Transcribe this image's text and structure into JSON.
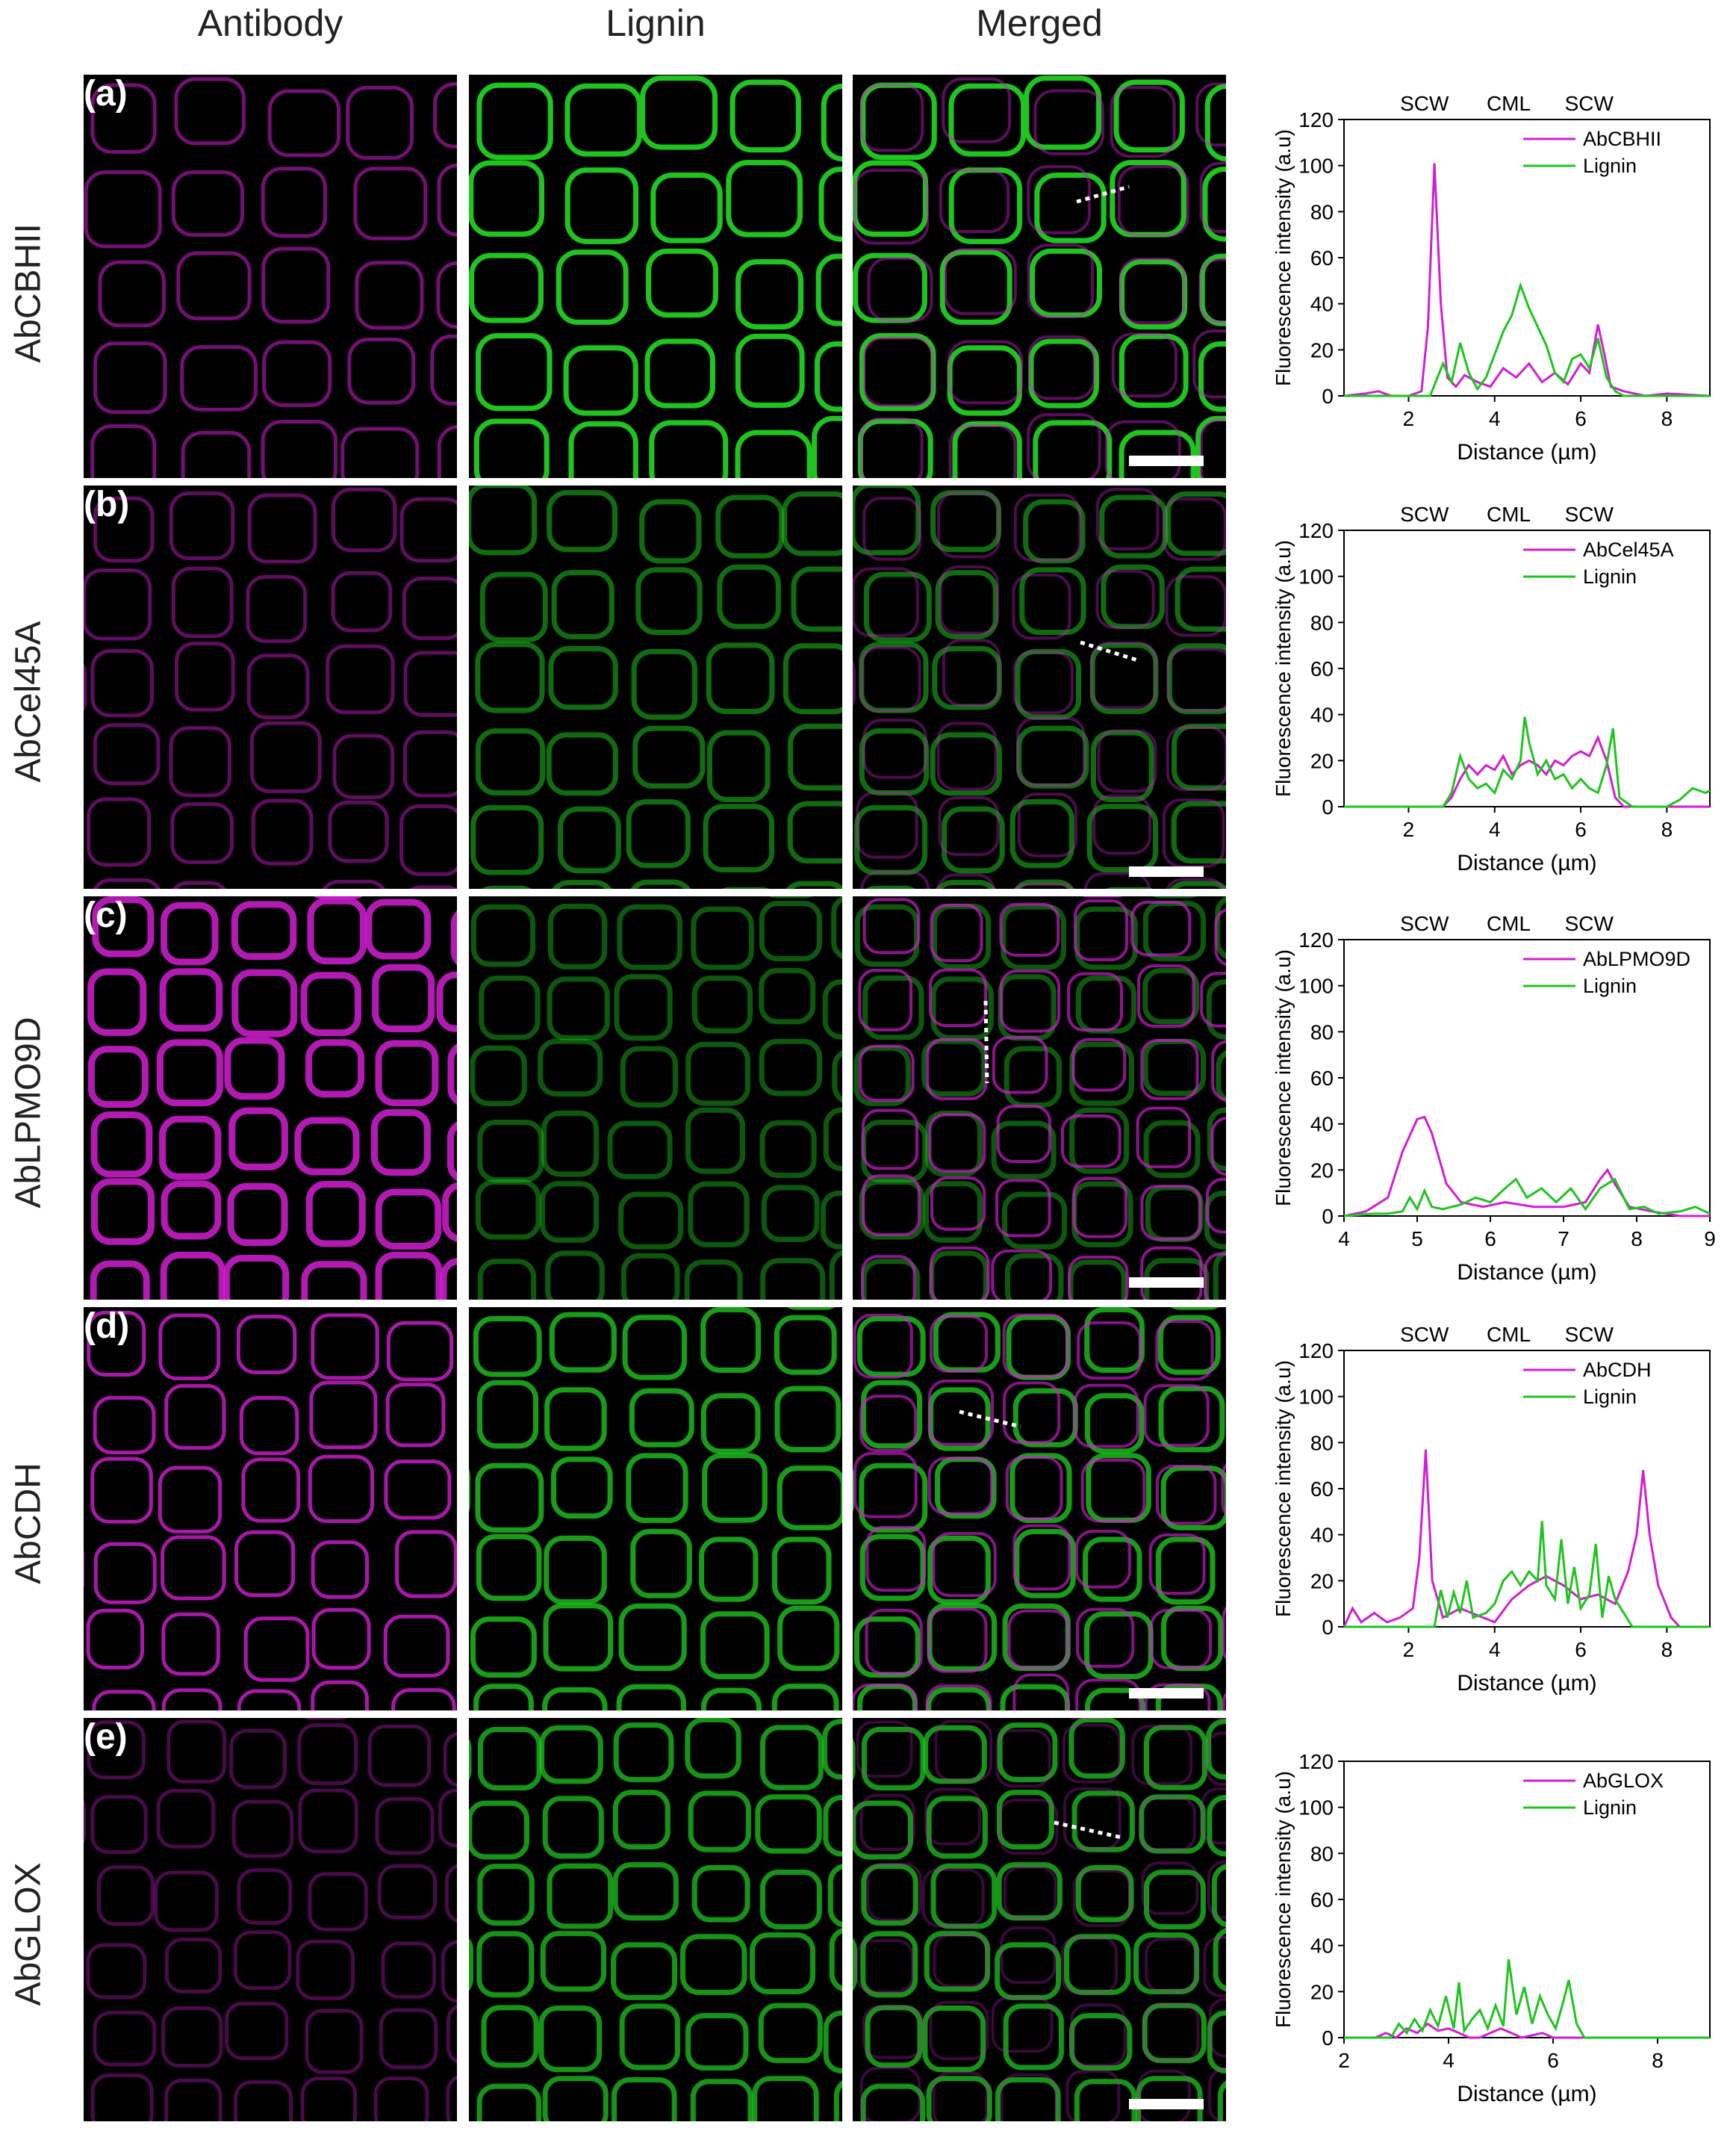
{
  "column_headers": {
    "antibody": "Antibody",
    "lignin": "Lignin",
    "merged": "Merged"
  },
  "colors": {
    "magenta": "#d21ed2",
    "green": "#1fc41f",
    "panel_bg": "#000000"
  },
  "rows": [
    {
      "letter": "(a)",
      "label": "AbCBHII"
    },
    {
      "letter": "(b)",
      "label": "AbCel45A"
    },
    {
      "letter": "(c)",
      "label": "AbLPMO9D"
    },
    {
      "letter": "(d)",
      "label": "AbCDH"
    },
    {
      "letter": "(e)",
      "label": "AbGLOX"
    }
  ],
  "chart_data": [
    {
      "type": "line",
      "region_labels": [
        "SCW",
        "CML",
        "SCW"
      ],
      "xlabel": "Distance (µm)",
      "ylabel": "Fluorescence intensity (a.u)",
      "xlim": [
        0.5,
        9
      ],
      "ylim": [
        0,
        120
      ],
      "xticks": [
        2,
        4,
        6,
        8
      ],
      "yticks": [
        0,
        20,
        40,
        60,
        80,
        100,
        120
      ],
      "legend_position": "top-right",
      "series": [
        {
          "name": "AbCBHII",
          "color": "#d21ed2",
          "x": [
            0.5,
            1.0,
            1.3,
            1.6,
            2.0,
            2.3,
            2.45,
            2.6,
            2.75,
            2.9,
            3.1,
            3.3,
            3.6,
            3.9,
            4.2,
            4.5,
            4.8,
            5.1,
            5.4,
            5.7,
            6.0,
            6.2,
            6.4,
            6.55,
            6.7,
            7.0,
            7.5,
            8.0,
            9.0
          ],
          "y": [
            0,
            1,
            2,
            0,
            0,
            2,
            30,
            101,
            40,
            8,
            4,
            9,
            6,
            4,
            12,
            8,
            14,
            6,
            10,
            5,
            14,
            10,
            31,
            18,
            4,
            2,
            0,
            1,
            0
          ]
        },
        {
          "name": "Lignin",
          "color": "#1fc41f",
          "x": [
            0.5,
            2.5,
            2.8,
            3.0,
            3.2,
            3.4,
            3.6,
            3.8,
            4.0,
            4.2,
            4.4,
            4.6,
            4.8,
            5.0,
            5.2,
            5.4,
            5.6,
            5.8,
            6.0,
            6.2,
            6.4,
            6.6,
            6.8,
            7.0,
            9.0
          ],
          "y": [
            0,
            0,
            14,
            6,
            23,
            10,
            3,
            8,
            18,
            28,
            35,
            48,
            38,
            30,
            22,
            10,
            6,
            16,
            18,
            12,
            25,
            8,
            2,
            0,
            0
          ]
        }
      ]
    },
    {
      "type": "line",
      "region_labels": [
        "SCW",
        "CML",
        "SCW"
      ],
      "xlabel": "Distance (µm)",
      "ylabel": "Fluorescence intensity (a.u)",
      "xlim": [
        0.5,
        9
      ],
      "ylim": [
        0,
        120
      ],
      "xticks": [
        2,
        4,
        6,
        8
      ],
      "yticks": [
        0,
        20,
        40,
        60,
        80,
        100,
        120
      ],
      "legend_position": "top-right",
      "series": [
        {
          "name": "AbCel45A",
          "color": "#d21ed2",
          "x": [
            0.5,
            2.8,
            3.0,
            3.2,
            3.4,
            3.6,
            3.8,
            4.0,
            4.2,
            4.4,
            4.6,
            4.8,
            5.0,
            5.2,
            5.4,
            5.6,
            5.8,
            6.0,
            6.2,
            6.4,
            6.6,
            6.8,
            7.0,
            9.0
          ],
          "y": [
            0,
            0,
            4,
            12,
            18,
            14,
            18,
            16,
            22,
            14,
            18,
            20,
            18,
            14,
            20,
            18,
            22,
            24,
            22,
            30,
            20,
            4,
            0,
            0
          ]
        },
        {
          "name": "Lignin",
          "color": "#1fc41f",
          "x": [
            0.5,
            2.8,
            3.0,
            3.2,
            3.4,
            3.6,
            3.8,
            4.0,
            4.2,
            4.4,
            4.6,
            4.7,
            4.8,
            5.0,
            5.2,
            5.4,
            5.6,
            5.8,
            6.0,
            6.2,
            6.4,
            6.6,
            6.75,
            6.9,
            7.2,
            8.0,
            8.3,
            8.6,
            8.9,
            9.0
          ],
          "y": [
            0,
            0,
            6,
            22,
            12,
            8,
            10,
            6,
            16,
            12,
            20,
            39,
            28,
            14,
            20,
            12,
            14,
            8,
            12,
            8,
            6,
            18,
            34,
            4,
            0,
            0,
            3,
            8,
            6,
            7
          ]
        }
      ]
    },
    {
      "type": "line",
      "region_labels": [
        "SCW",
        "CML",
        "SCW"
      ],
      "xlabel": "Distance (µm)",
      "ylabel": "Fluorescence intensity (a.u)",
      "xlim": [
        4,
        9
      ],
      "ylim": [
        0,
        120
      ],
      "xticks": [
        4,
        5,
        6,
        7,
        8,
        9
      ],
      "yticks": [
        0,
        20,
        40,
        60,
        80,
        100,
        120
      ],
      "legend_position": "top-right",
      "series": [
        {
          "name": "AbLPMO9D",
          "color": "#d21ed2",
          "x": [
            4.0,
            4.3,
            4.6,
            4.8,
            5.0,
            5.1,
            5.2,
            5.4,
            5.6,
            5.9,
            6.2,
            6.6,
            7.0,
            7.3,
            7.5,
            7.6,
            7.7,
            7.9,
            8.2,
            8.6,
            9.0
          ],
          "y": [
            0,
            2,
            8,
            28,
            42,
            43,
            36,
            14,
            6,
            4,
            6,
            4,
            4,
            6,
            16,
            20,
            14,
            4,
            2,
            0,
            0
          ]
        },
        {
          "name": "Lignin",
          "color": "#1fc41f",
          "x": [
            4.0,
            4.4,
            4.6,
            4.8,
            4.9,
            5.0,
            5.1,
            5.2,
            5.35,
            5.6,
            5.8,
            6.0,
            6.2,
            6.35,
            6.5,
            6.7,
            6.9,
            7.1,
            7.3,
            7.5,
            7.7,
            7.9,
            8.1,
            8.3,
            8.6,
            8.8,
            9.0
          ],
          "y": [
            0,
            1,
            1,
            2,
            8,
            3,
            11,
            4,
            3,
            5,
            8,
            6,
            12,
            16,
            8,
            12,
            6,
            12,
            3,
            12,
            16,
            3,
            4,
            1,
            2,
            4,
            1
          ]
        }
      ]
    },
    {
      "type": "line",
      "region_labels": [
        "SCW",
        "CML",
        "SCW"
      ],
      "xlabel": "Distance (µm)",
      "ylabel": "Fluorescence intensity (a.u)",
      "xlim": [
        0.5,
        9
      ],
      "ylim": [
        0,
        120
      ],
      "xticks": [
        2,
        4,
        6,
        8
      ],
      "yticks": [
        0,
        20,
        40,
        60,
        80,
        100,
        120
      ],
      "legend_position": "top-right",
      "series": [
        {
          "name": "AbCDH",
          "color": "#d21ed2",
          "x": [
            0.5,
            0.7,
            0.9,
            1.2,
            1.5,
            1.8,
            2.1,
            2.25,
            2.4,
            2.55,
            2.8,
            3.2,
            3.6,
            4.0,
            4.4,
            4.8,
            5.2,
            5.6,
            6.0,
            6.4,
            6.8,
            7.1,
            7.3,
            7.45,
            7.6,
            7.8,
            8.1,
            8.3,
            9.0
          ],
          "y": [
            0,
            8,
            2,
            6,
            2,
            4,
            8,
            30,
            77,
            20,
            4,
            8,
            5,
            2,
            12,
            18,
            22,
            18,
            12,
            14,
            10,
            24,
            40,
            68,
            40,
            18,
            4,
            0,
            0
          ]
        },
        {
          "name": "Lignin",
          "color": "#1fc41f",
          "x": [
            0.5,
            2.6,
            2.75,
            2.9,
            3.05,
            3.2,
            3.35,
            3.5,
            3.8,
            4.0,
            4.2,
            4.4,
            4.6,
            4.8,
            5.0,
            5.1,
            5.2,
            5.4,
            5.55,
            5.7,
            5.85,
            6.0,
            6.2,
            6.35,
            6.5,
            6.65,
            6.8,
            7.0,
            7.2,
            9.0
          ],
          "y": [
            0,
            0,
            16,
            4,
            15,
            6,
            20,
            4,
            6,
            10,
            20,
            24,
            18,
            24,
            20,
            46,
            18,
            12,
            38,
            10,
            26,
            8,
            14,
            36,
            4,
            22,
            12,
            6,
            0,
            0
          ]
        }
      ]
    },
    {
      "type": "line",
      "region_labels": [],
      "xlabel": "Distance (µm)",
      "ylabel": "Fluorescence intensity (a.u)",
      "xlim": [
        2,
        9
      ],
      "ylim": [
        0,
        120
      ],
      "xticks": [
        2,
        4,
        6,
        8
      ],
      "yticks": [
        0,
        20,
        40,
        60,
        80,
        100,
        120
      ],
      "legend_position": "top-right",
      "series": [
        {
          "name": "AbGLOX",
          "color": "#d21ed2",
          "x": [
            2.0,
            2.6,
            2.8,
            3.0,
            3.2,
            3.4,
            3.6,
            3.8,
            4.0,
            4.2,
            4.4,
            4.6,
            4.8,
            5.0,
            5.2,
            5.4,
            5.6,
            5.8,
            6.0,
            6.2,
            9.0
          ],
          "y": [
            0,
            0,
            2,
            0,
            4,
            2,
            6,
            3,
            4,
            2,
            0,
            0,
            2,
            4,
            2,
            0,
            1,
            2,
            0,
            0,
            0
          ]
        },
        {
          "name": "Lignin",
          "color": "#1fc41f",
          "x": [
            2.0,
            2.9,
            3.05,
            3.2,
            3.35,
            3.5,
            3.65,
            3.8,
            3.95,
            4.1,
            4.2,
            4.3,
            4.45,
            4.6,
            4.75,
            4.9,
            5.05,
            5.15,
            5.3,
            5.45,
            5.6,
            5.75,
            5.9,
            6.05,
            6.2,
            6.3,
            6.45,
            6.6,
            9.0
          ],
          "y": [
            0,
            0,
            6,
            2,
            8,
            3,
            12,
            5,
            18,
            4,
            24,
            3,
            8,
            12,
            4,
            14,
            5,
            34,
            10,
            22,
            6,
            18,
            10,
            4,
            16,
            25,
            6,
            0,
            0
          ]
        }
      ]
    }
  ]
}
